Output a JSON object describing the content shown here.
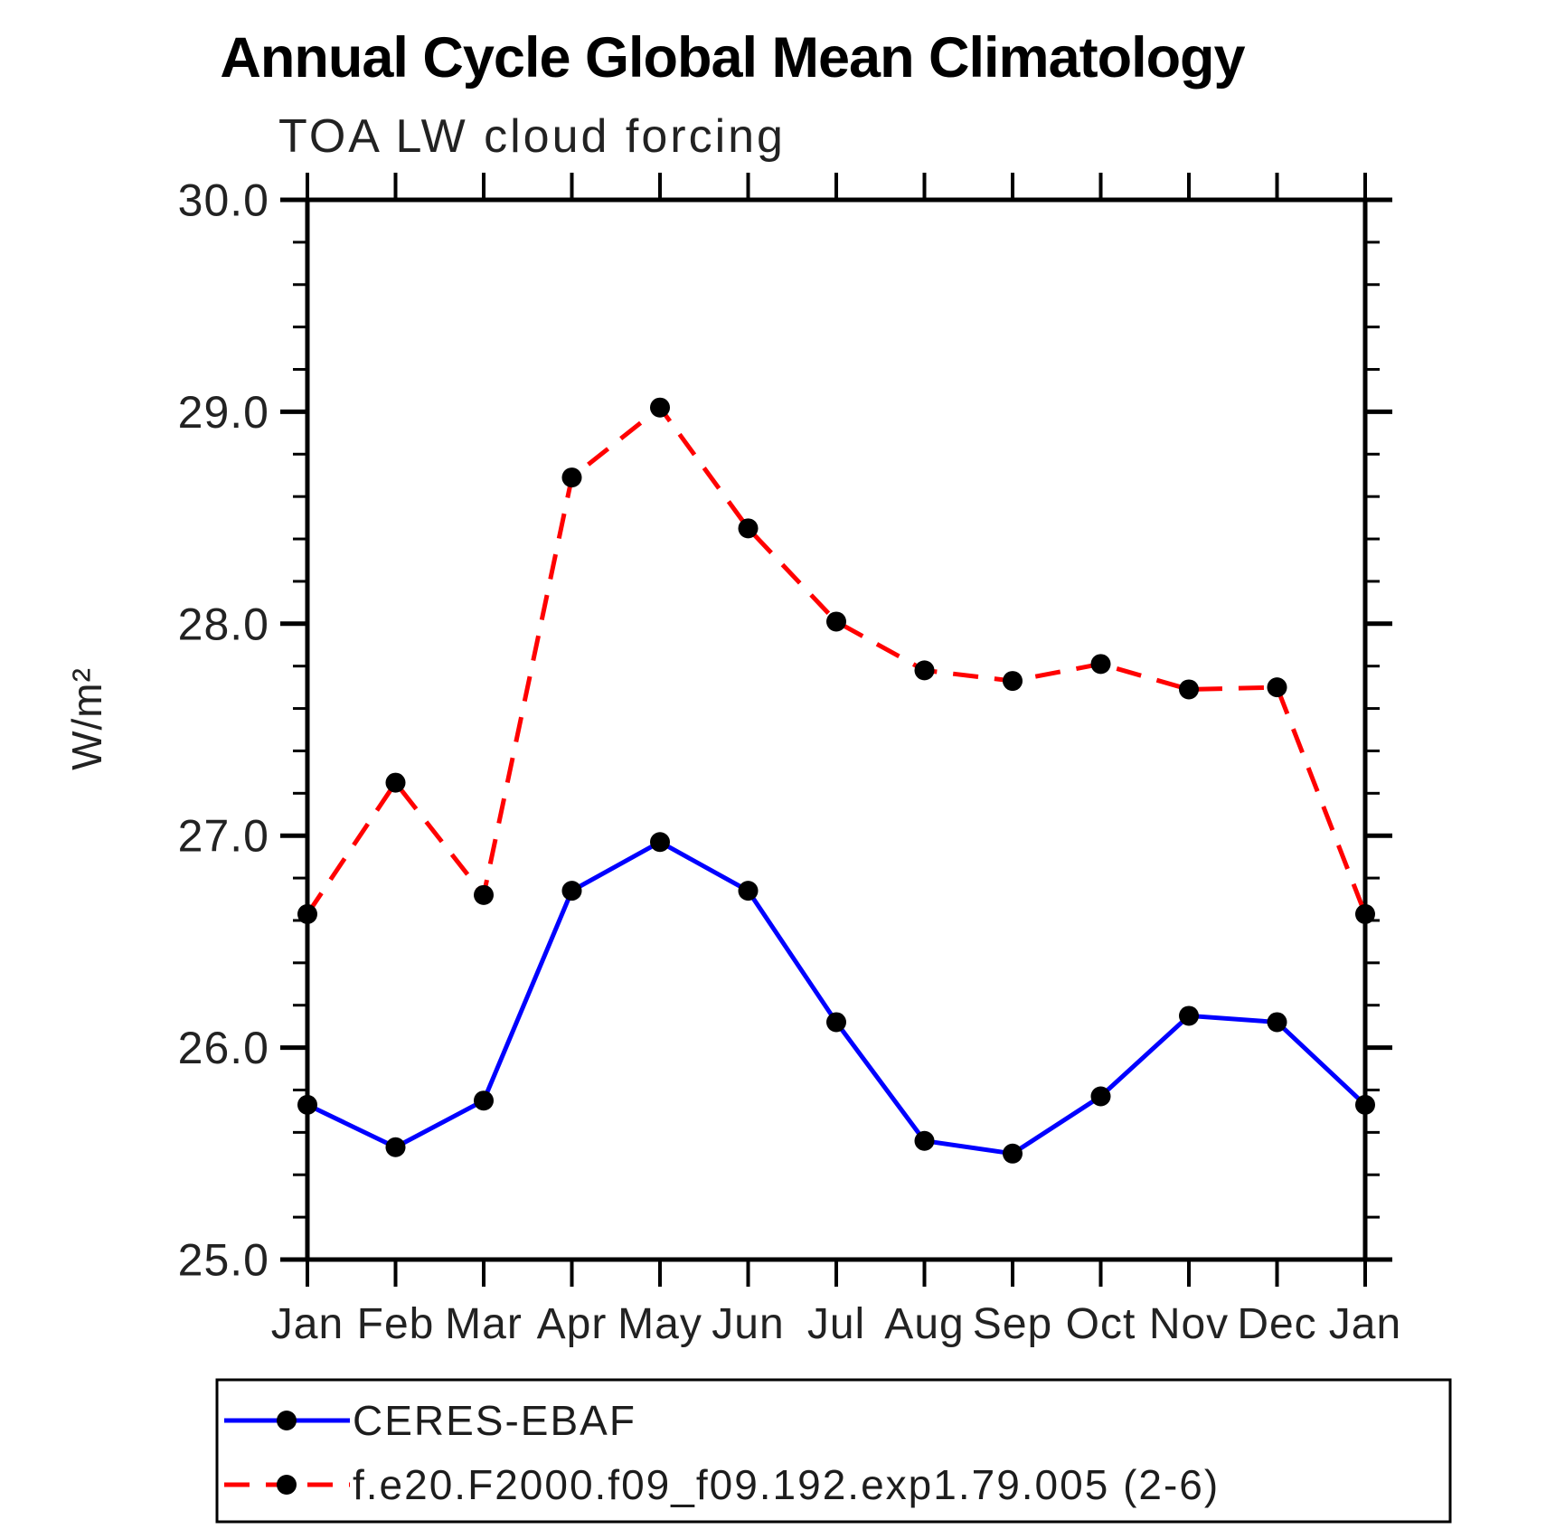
{
  "chart_data": {
    "type": "line",
    "title": "Annual Cycle Global Mean Climatology",
    "subtitle": "TOA LW cloud forcing",
    "ylabel": "W/m²",
    "xlabel": "",
    "ylim": [
      25.0,
      30.0
    ],
    "y_major_step": 1.0,
    "y_minor_step": 0.2,
    "y_tick_labels": [
      "25.0",
      "26.0",
      "27.0",
      "28.0",
      "29.0",
      "30.0"
    ],
    "grid": false,
    "legend_position": "bottom",
    "axis_color": "#000000",
    "marker_color": "#000000",
    "categories": [
      "Jan",
      "Feb",
      "Mar",
      "Apr",
      "May",
      "Jun",
      "Jul",
      "Aug",
      "Sep",
      "Oct",
      "Nov",
      "Dec",
      "Jan"
    ],
    "series": [
      {
        "name": "CERES-EBAF",
        "color": "#0000ff",
        "line_style": "solid",
        "marker": "filled-circle",
        "values": [
          25.73,
          25.53,
          25.75,
          26.74,
          26.97,
          26.74,
          26.12,
          25.56,
          25.5,
          25.77,
          26.15,
          26.12,
          25.73
        ]
      },
      {
        "name": "f.e20.F2000.f09_f09.192.exp1.79.005 (2-6)",
        "color": "#ff0000",
        "line_style": "dashed",
        "marker": "filled-circle",
        "values": [
          26.63,
          27.25,
          26.72,
          28.69,
          29.02,
          28.45,
          28.01,
          27.78,
          27.73,
          27.81,
          27.69,
          27.7,
          26.63
        ]
      }
    ]
  }
}
